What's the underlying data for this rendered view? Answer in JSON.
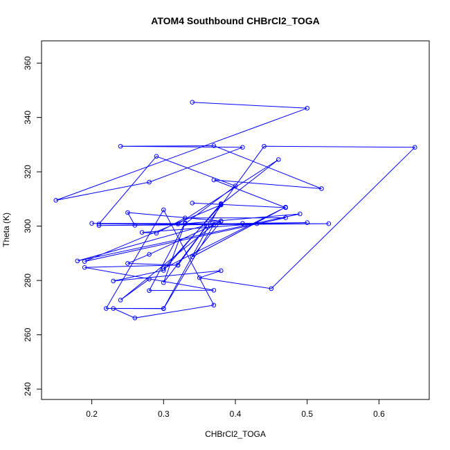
{
  "chart_data": {
    "type": "line",
    "title": "ATOM4 Southbound CHBrCl2_TOGA",
    "xlabel": "CHBrCl2_TOGA",
    "ylabel": "Theta (K)",
    "xlim": [
      0.13,
      0.67
    ],
    "ylim": [
      236.2,
      368.2
    ],
    "xticks": [
      0.2,
      0.3,
      0.4,
      0.5,
      0.6
    ],
    "xtick_labels": [
      "0.2",
      "0.3",
      "0.4",
      "0.5",
      "0.6"
    ],
    "yticks": [
      240,
      260,
      280,
      300,
      320,
      340,
      360
    ],
    "ytick_labels": [
      "240",
      "260",
      "280",
      "300",
      "320",
      "340",
      "360"
    ],
    "grid": false,
    "series": [
      {
        "color": "#0000ff",
        "marker": "open-circle",
        "points": [
          [
            0.34,
            345.6
          ],
          [
            0.5,
            343.4
          ],
          [
            0.15,
            309.5
          ],
          [
            0.28,
            316.2
          ],
          [
            0.41,
            329.0
          ],
          [
            0.24,
            329.4
          ],
          [
            0.37,
            329.6
          ],
          [
            0.52,
            313.8
          ],
          [
            0.37,
            317.0
          ],
          [
            0.47,
            306.8
          ],
          [
            0.34,
            308.5
          ],
          [
            0.38,
            308.0
          ],
          [
            0.46,
            324.5
          ],
          [
            0.32,
            300.8
          ],
          [
            0.21,
            300.8
          ],
          [
            0.29,
            325.7
          ],
          [
            0.4,
            314.8
          ],
          [
            0.33,
            300.9
          ],
          [
            0.49,
            304.5
          ],
          [
            0.18,
            287.2
          ],
          [
            0.38,
            301.9
          ],
          [
            0.25,
            305.0
          ],
          [
            0.26,
            300.3
          ],
          [
            0.41,
            301.0
          ],
          [
            0.5,
            301.3
          ],
          [
            0.21,
            300.2
          ],
          [
            0.53,
            300.9
          ],
          [
            0.2,
            301.0
          ],
          [
            0.43,
            300.9
          ],
          [
            0.27,
            297.7
          ],
          [
            0.29,
            297.4
          ],
          [
            0.33,
            303.0
          ],
          [
            0.47,
            303.1
          ],
          [
            0.19,
            287.0
          ],
          [
            0.38,
            307.8
          ],
          [
            0.3,
            284.4
          ],
          [
            0.47,
            307.0
          ],
          [
            0.34,
            288.7
          ],
          [
            0.38,
            301.8
          ],
          [
            0.28,
            289.6
          ],
          [
            0.25,
            286.3
          ],
          [
            0.32,
            285.6
          ],
          [
            0.36,
            300.0
          ],
          [
            0.3,
            279.2
          ],
          [
            0.33,
            301.2
          ],
          [
            0.28,
            276.3
          ],
          [
            0.37,
            276.4
          ],
          [
            0.19,
            284.8
          ],
          [
            0.32,
            285.7
          ],
          [
            0.44,
            329.4
          ],
          [
            0.65,
            329.0
          ],
          [
            0.45,
            277.0
          ],
          [
            0.35,
            281.0
          ],
          [
            0.38,
            283.6
          ],
          [
            0.23,
            279.8
          ],
          [
            0.3,
            283.7
          ],
          [
            0.38,
            308.3
          ],
          [
            0.3,
            269.7
          ],
          [
            0.22,
            269.7
          ],
          [
            0.3,
            306.0
          ],
          [
            0.37,
            270.9
          ],
          [
            0.26,
            266.2
          ],
          [
            0.23,
            269.7
          ],
          [
            0.3,
            269.6
          ],
          [
            0.37,
            300.6
          ],
          [
            0.24,
            272.8
          ],
          [
            0.28,
            280.5
          ]
        ]
      }
    ]
  }
}
